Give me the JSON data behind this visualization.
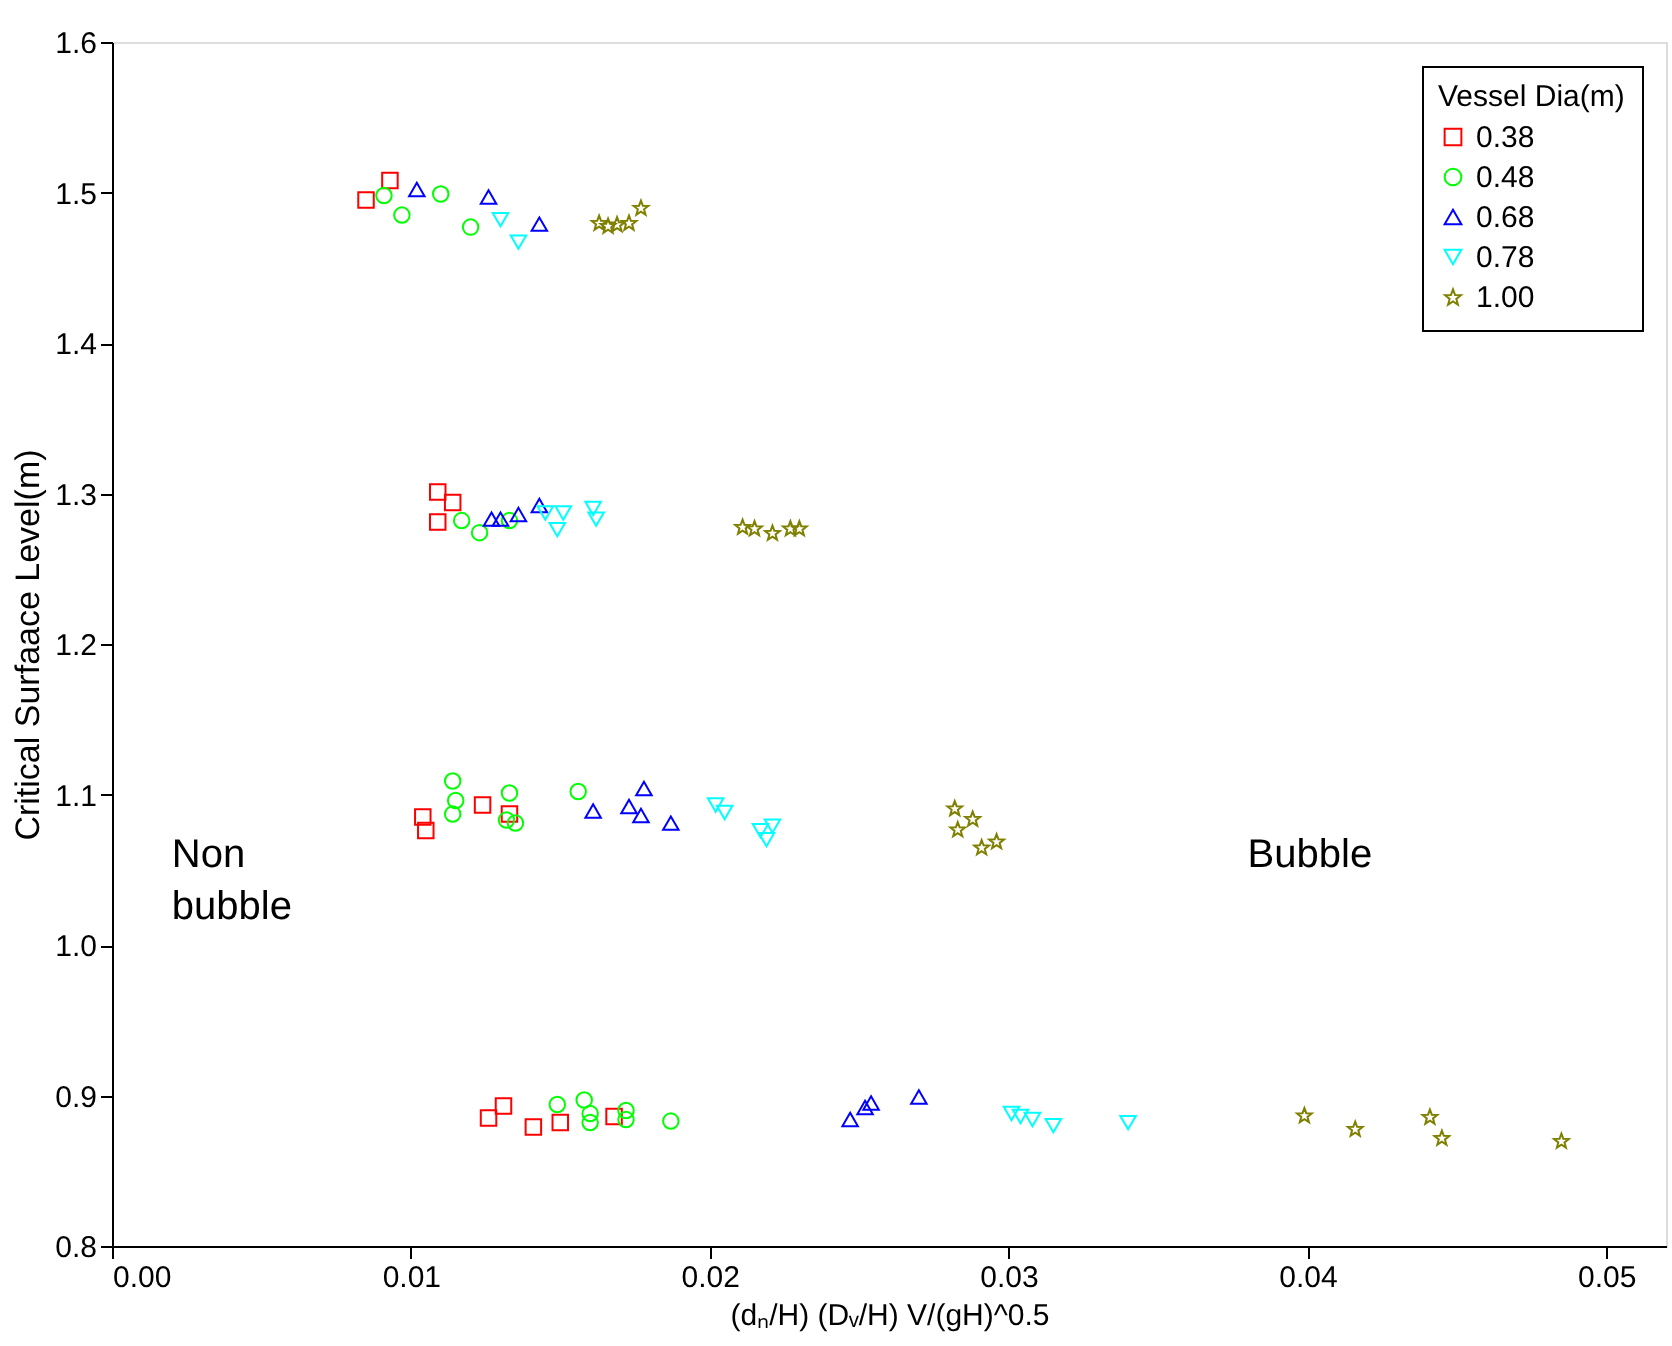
{
  "chart_data": {
    "type": "scatter",
    "xlabel": "(dₙ/H) (Dᵥ/H) V/(gH)^0.5",
    "ylabel": "Critical Surfaace Level(m)",
    "legend_title": "Vessel Dia(m)",
    "legend": "top right",
    "grid": false,
    "xlim": [
      0,
      0.052
    ],
    "ylim": [
      0.8,
      1.6
    ],
    "xticks": [
      {
        "value": 0,
        "label": "0.00"
      },
      {
        "value": 0.01,
        "label": "0.01"
      },
      {
        "value": 0.02,
        "label": "0.02"
      },
      {
        "value": 0.03,
        "label": "0.03"
      },
      {
        "value": 0.04,
        "label": "0.04"
      },
      {
        "value": 0.05,
        "label": "0.05"
      }
    ],
    "yticks": [
      0.8,
      0.9,
      {
        "value": 1.0,
        "label": "1.0"
      },
      1.1,
      1.2,
      1.3,
      1.4,
      1.5,
      1.6
    ],
    "annotations": [
      "Non bubble",
      "Bubble"
    ],
    "series": [
      {
        "name": "0.38",
        "color": "#ff0000",
        "marker": "square",
        "x": [
          0.0085,
          0.0093,
          0.0109,
          0.0114,
          0.0109,
          0.0104,
          0.0105,
          0.0124,
          0.0133,
          0.0126,
          0.0131,
          0.0141,
          0.015,
          0.0168
        ],
        "values": [
          1.495,
          1.508,
          1.301,
          1.294,
          1.281,
          1.085,
          1.076,
          1.093,
          1.087,
          0.885,
          0.893,
          0.879,
          0.882,
          0.886
        ]
      },
      {
        "name": "0.48",
        "color": "#00ff00",
        "marker": "circle",
        "x": [
          0.0091,
          0.0097,
          0.011,
          0.012,
          0.0117,
          0.0123,
          0.0133,
          0.0114,
          0.0115,
          0.0114,
          0.0133,
          0.0132,
          0.0135,
          0.0156,
          0.0149,
          0.0158,
          0.016,
          0.016,
          0.0172,
          0.0172,
          0.0187
        ],
        "values": [
          1.498,
          1.485,
          1.499,
          1.477,
          1.282,
          1.274,
          1.282,
          1.109,
          1.096,
          1.087,
          1.101,
          1.083,
          1.081,
          1.102,
          0.894,
          0.897,
          0.888,
          0.882,
          0.89,
          0.884,
          0.883
        ]
      },
      {
        "name": "0.68",
        "color": "#0000ff",
        "marker": "triangle",
        "x": [
          0.0102,
          0.0126,
          0.0143,
          0.0127,
          0.013,
          0.0136,
          0.0143,
          0.0178,
          0.0161,
          0.0173,
          0.0177,
          0.0187,
          0.0247,
          0.0252,
          0.0254,
          0.027
        ],
        "values": [
          1.502,
          1.497,
          1.479,
          1.283,
          1.283,
          1.286,
          1.292,
          1.104,
          1.089,
          1.092,
          1.086,
          1.081,
          0.884,
          0.892,
          0.895,
          0.899
        ]
      },
      {
        "name": "0.78",
        "color": "#00ffff",
        "marker": "triangle-down",
        "x": [
          0.013,
          0.0136,
          0.0145,
          0.0151,
          0.0149,
          0.0161,
          0.0162,
          0.0202,
          0.0205,
          0.0217,
          0.0219,
          0.0221,
          0.0301,
          0.0304,
          0.0308,
          0.0315,
          0.034
        ],
        "values": [
          1.482,
          1.467,
          1.287,
          1.287,
          1.276,
          1.29,
          1.283,
          1.093,
          1.088,
          1.076,
          1.07,
          1.079,
          0.888,
          0.886,
          0.884,
          0.88,
          0.882
        ]
      },
      {
        "name": "1.00",
        "color": "#808000",
        "marker": "star",
        "x": [
          0.0163,
          0.0166,
          0.0169,
          0.0173,
          0.0177,
          0.0211,
          0.0215,
          0.0221,
          0.0227,
          0.023,
          0.0282,
          0.0288,
          0.0283,
          0.0291,
          0.0296,
          0.0399,
          0.0416,
          0.0441,
          0.0445,
          0.0485
        ],
        "values": [
          1.48,
          1.478,
          1.479,
          1.48,
          1.49,
          1.278,
          1.277,
          1.274,
          1.277,
          1.277,
          1.091,
          1.084,
          1.077,
          1.065,
          1.069,
          0.887,
          0.878,
          0.886,
          0.872,
          0.87
        ]
      }
    ]
  }
}
